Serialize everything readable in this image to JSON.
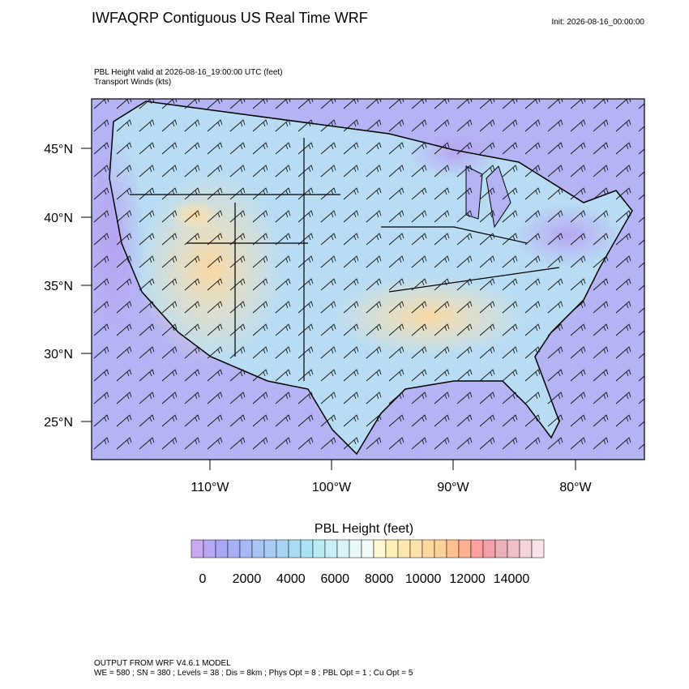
{
  "header": {
    "title": "IWFAQRP Contiguous US Real Time WRF",
    "init": "Init: 2026-08-16_00:00:00"
  },
  "map": {
    "subtitle_lines": [
      "PBL Height valid at 2026-08-16_19:00:00 UTC   (feet)",
      "Transport Winds   (kts)"
    ],
    "lat_labels": [
      "45°N",
      "40°N",
      "35°N",
      "30°N",
      "25°N"
    ],
    "lon_labels": [
      "110°W",
      "100°W",
      "90°W",
      "80°W"
    ]
  },
  "colorbar": {
    "title": "PBL Height  (feet)",
    "labels": [
      "0",
      "2000",
      "4000",
      "6000",
      "8000",
      "10000",
      "12000",
      "14000"
    ],
    "colors": [
      "#c8a8f0",
      "#b8a8f4",
      "#a8a8f4",
      "#a8b0f4",
      "#a8b8f4",
      "#a8c4f4",
      "#a8ccf4",
      "#a8d4f4",
      "#a8dcf4",
      "#a8e4f4",
      "#b8ecf4",
      "#c8f0f4",
      "#d8f4f8",
      "#e8f8f8",
      "#f4fafa",
      "#fff8d0",
      "#fff0b8",
      "#ffe8b0",
      "#ffe0a8",
      "#ffd8a0",
      "#ffd098",
      "#ffc090",
      "#ffb090",
      "#ffa0a0",
      "#f4a0a8",
      "#ecb0b8",
      "#f0c0c8",
      "#f4d4d8",
      "#f8e4e8"
    ]
  },
  "footer": {
    "lines": [
      "OUTPUT FROM WRF V4.6.1 MODEL",
      "WE = 580 ; SN = 380 ; Levels = 38 ; Dis = 8km ; Phys Opt = 8 ; PBL Opt = 1 ; Cu Opt = 5"
    ]
  }
}
